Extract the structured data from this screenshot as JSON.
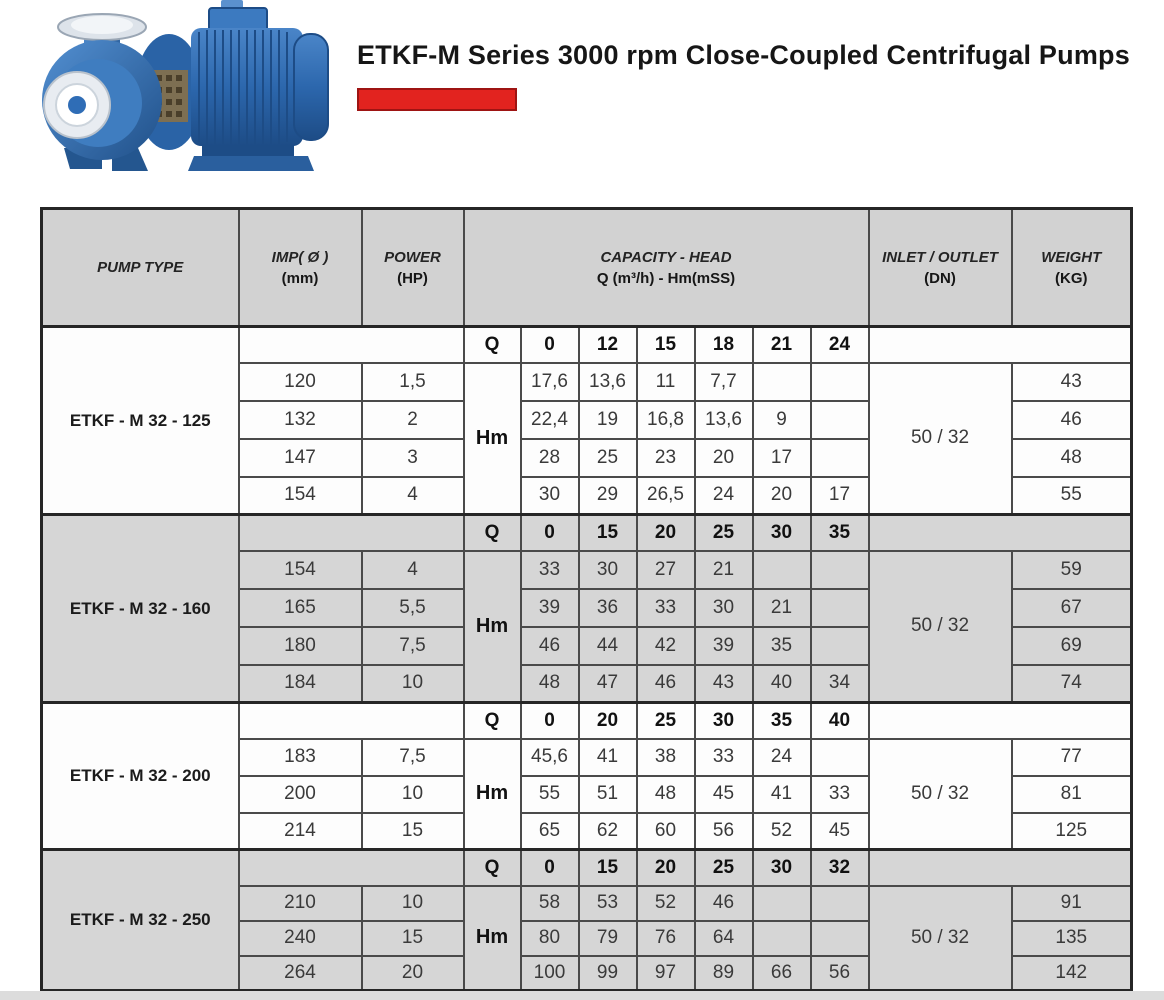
{
  "page": {
    "title": "ETKF-M Series 3000 rpm Close-Coupled Centrifugal Pumps"
  },
  "colors": {
    "accent_red": "#e2231f",
    "header_gray": "#d2d2d2",
    "band_gray": "#d6d6d6",
    "band_white": "#fdfdfd",
    "border_dark": "#262626",
    "pump_blue": "#2f6db6"
  },
  "table": {
    "headers": {
      "pump_type": "PUMP TYPE",
      "imp_line1": "IMP( Ø )",
      "imp_line2": "(mm)",
      "power_line1": "POWER",
      "power_line2": "(HP)",
      "capacity_line1": "CAPACITY - HEAD",
      "capacity_line2": "Q (m³/h) - Hm(mSS)",
      "inlet_line1": "INLET / OUTLET",
      "inlet_line2": "(DN)",
      "weight_line1": "WEIGHT",
      "weight_line2": "(KG)"
    },
    "q_label": "Q",
    "hm_label": "Hm",
    "groups": [
      {
        "pump_type": "ETKF - M 32 - 125",
        "shaded": false,
        "q_values": [
          "0",
          "12",
          "15",
          "18",
          "21",
          "24"
        ],
        "inlet_outlet": "50 / 32",
        "rows": [
          {
            "imp": "120",
            "power": "1,5",
            "hm": [
              "17,6",
              "13,6",
              "11",
              "7,7",
              "",
              ""
            ],
            "weight": "43"
          },
          {
            "imp": "132",
            "power": "2",
            "hm": [
              "22,4",
              "19",
              "16,8",
              "13,6",
              "9",
              ""
            ],
            "weight": "46"
          },
          {
            "imp": "147",
            "power": "3",
            "hm": [
              "28",
              "25",
              "23",
              "20",
              "17",
              ""
            ],
            "weight": "48"
          },
          {
            "imp": "154",
            "power": "4",
            "hm": [
              "30",
              "29",
              "26,5",
              "24",
              "20",
              "17"
            ],
            "weight": "55"
          }
        ]
      },
      {
        "pump_type": "ETKF - M 32 - 160",
        "shaded": true,
        "q_values": [
          "0",
          "15",
          "20",
          "25",
          "30",
          "35"
        ],
        "inlet_outlet": "50 / 32",
        "rows": [
          {
            "imp": "154",
            "power": "4",
            "hm": [
              "33",
              "30",
              "27",
              "21",
              "",
              ""
            ],
            "weight": "59"
          },
          {
            "imp": "165",
            "power": "5,5",
            "hm": [
              "39",
              "36",
              "33",
              "30",
              "21",
              ""
            ],
            "weight": "67"
          },
          {
            "imp": "180",
            "power": "7,5",
            "hm": [
              "46",
              "44",
              "42",
              "39",
              "35",
              ""
            ],
            "weight": "69"
          },
          {
            "imp": "184",
            "power": "10",
            "hm": [
              "48",
              "47",
              "46",
              "43",
              "40",
              "34"
            ],
            "weight": "74"
          }
        ]
      },
      {
        "pump_type": "ETKF - M 32 - 200",
        "shaded": false,
        "q_values": [
          "0",
          "20",
          "25",
          "30",
          "35",
          "40"
        ],
        "inlet_outlet": "50 / 32",
        "rows": [
          {
            "imp": "183",
            "power": "7,5",
            "hm": [
              "45,6",
              "41",
              "38",
              "33",
              "24",
              ""
            ],
            "weight": "77"
          },
          {
            "imp": "200",
            "power": "10",
            "hm": [
              "55",
              "51",
              "48",
              "45",
              "41",
              "33"
            ],
            "weight": "81"
          },
          {
            "imp": "214",
            "power": "15",
            "hm": [
              "65",
              "62",
              "60",
              "56",
              "52",
              "45"
            ],
            "weight": "125"
          }
        ]
      },
      {
        "pump_type": "ETKF - M 32 - 250",
        "shaded": true,
        "q_values": [
          "0",
          "15",
          "20",
          "25",
          "30",
          "32"
        ],
        "inlet_outlet": "50 / 32",
        "rows": [
          {
            "imp": "210",
            "power": "10",
            "hm": [
              "58",
              "53",
              "52",
              "46",
              "",
              ""
            ],
            "weight": "91"
          },
          {
            "imp": "240",
            "power": "15",
            "hm": [
              "80",
              "79",
              "76",
              "64",
              "",
              ""
            ],
            "weight": "135"
          },
          {
            "imp": "264",
            "power": "20",
            "hm": [
              "100",
              "99",
              "97",
              "89",
              "66",
              "56"
            ],
            "weight": "142"
          }
        ]
      }
    ]
  }
}
